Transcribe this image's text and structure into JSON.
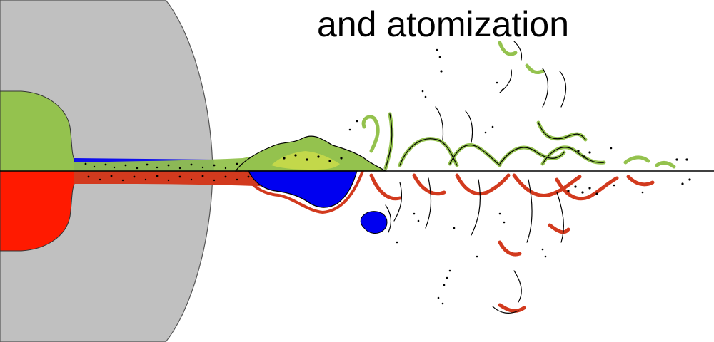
{
  "slide": {
    "title": "and atomization"
  },
  "colors": {
    "background": "#ffffff",
    "nozzle_body": "#c0c0c0",
    "upper_liquid_core": "#94c24e",
    "upper_liquid_light": "#c8da4a",
    "lower_liquid_core": "#ff1a00",
    "lower_liquid_dark": "#d23a1e",
    "gas_phase": "#0000f0",
    "interface_outline": "#000000"
  },
  "icons": {
    "nozzle": "nozzle-cross-section",
    "axis": "symmetry-axis-line"
  }
}
